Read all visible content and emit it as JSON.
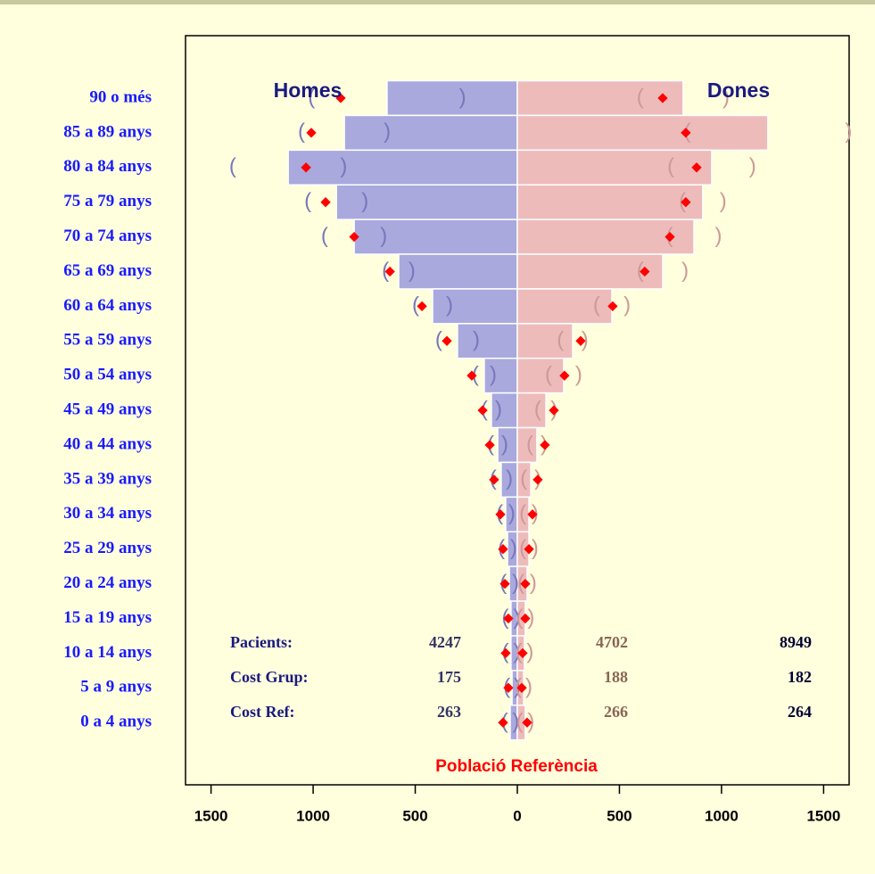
{
  "chart_data": {
    "type": "pyramid",
    "categories": [
      "90 o més",
      "85 a 89 anys",
      "80 a 84 anys",
      "75 a 79 anys",
      "70 a 74 anys",
      "65 a 69 anys",
      "60 a 64 anys",
      "55 a 59 anys",
      "50 a 54 anys",
      "45 a 49 anys",
      "40 a 44 anys",
      "35 a 39 anys",
      "30 a 34 anys",
      "25 a 29 anys",
      "20 a 24 anys",
      "15 a 19 anys",
      "10 a 14 anys",
      "5 a 9 anys",
      "0 a 4 anys"
    ],
    "series": [
      {
        "name": "Homes",
        "color": "#a9a9dd",
        "ci_color": "#7777bb",
        "side": "left",
        "values": [
          638,
          847,
          1122,
          886,
          799,
          581,
          415,
          293,
          162,
          127,
          96,
          79,
          57,
          48,
          39,
          31,
          31,
          26,
          35
        ],
        "ci": [
          370,
          210,
          272,
          140,
          145,
          65,
          83,
          92,
          44,
          35,
          35,
          40,
          30,
          30,
          30,
          28,
          28,
          26,
          28
        ]
      },
      {
        "name": "Dones",
        "color": "#eebbbb",
        "ci_color": "#cc9999",
        "side": "right",
        "values": [
          812,
          1227,
          952,
          908,
          865,
          712,
          463,
          271,
          227,
          140,
          96,
          66,
          57,
          57,
          48,
          39,
          35,
          31,
          39
        ],
        "ci": [
          210,
          395,
          200,
          100,
          120,
          110,
          75,
          60,
          74,
          40,
          35,
          35,
          30,
          30,
          30,
          28,
          28,
          26,
          28
        ]
      }
    ],
    "reference": {
      "name": "Població Referència",
      "color": "#ff0000",
      "men": [
        865,
        1009,
        1035,
        939,
        799,
        624,
        467,
        345,
        223,
        170,
        135,
        114,
        83,
        70,
        61,
        44,
        57,
        44,
        70
      ],
      "women": [
        712,
        825,
        878,
        825,
        747,
        624,
        467,
        310,
        231,
        179,
        135,
        100,
        74,
        57,
        39,
        39,
        26,
        22,
        48
      ]
    },
    "summary": {
      "rows": [
        {
          "label": "Pacients:",
          "values": [
            4247,
            4702,
            8949
          ]
        },
        {
          "label": "Cost Grup:",
          "values": [
            175,
            188,
            182
          ]
        },
        {
          "label": "Cost Ref:",
          "values": [
            263,
            266,
            264
          ]
        }
      ],
      "colors": [
        "#333366",
        "#886655",
        "#000033"
      ]
    },
    "xlim": [
      -1625,
      1625
    ],
    "xticks": [
      {
        "value": -1500,
        "label": "1500"
      },
      {
        "value": -1000,
        "label": "1000"
      },
      {
        "value": -500,
        "label": "500"
      },
      0,
      500,
      1000,
      1500
    ]
  }
}
